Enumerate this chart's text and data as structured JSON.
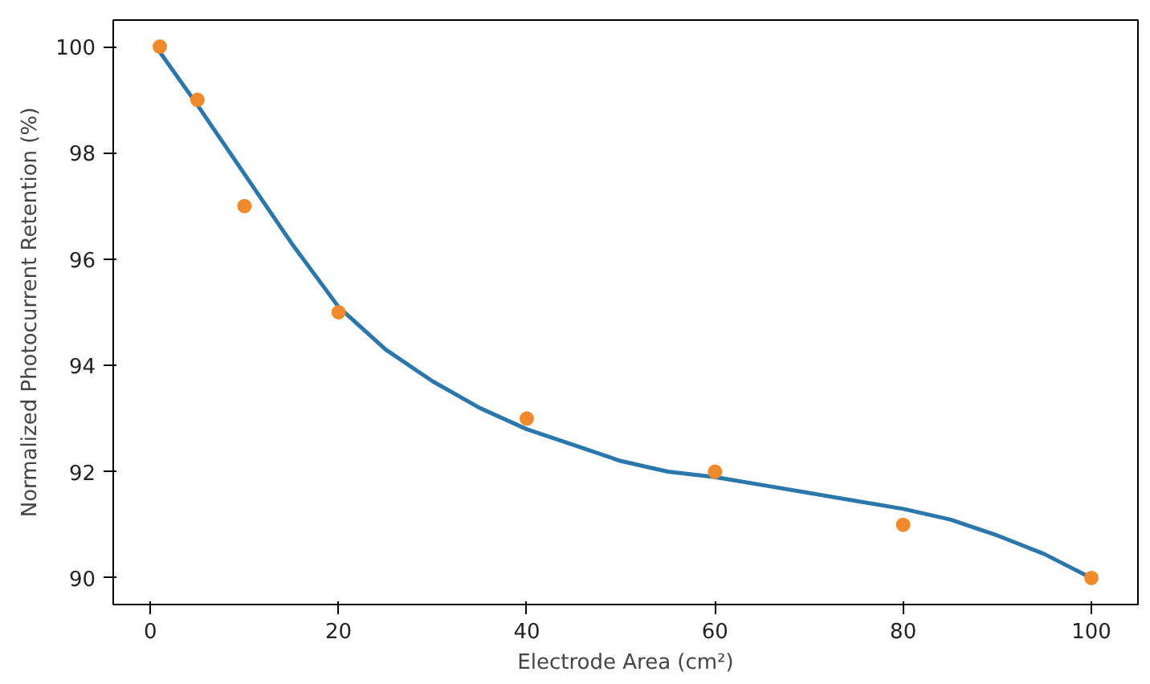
{
  "chart_data": {
    "type": "scatter",
    "xlabel": "Electrode Area (cm²)",
    "ylabel": "Normalized Photocurrent Retention (%)",
    "xlim": [
      -3.95,
      104.95
    ],
    "ylim": [
      89.5,
      100.5
    ],
    "xticks": [
      0,
      20,
      40,
      60,
      80,
      100
    ],
    "yticks": [
      90,
      92,
      94,
      96,
      98,
      100
    ],
    "grid": false,
    "series": [
      {
        "type": "line",
        "color": "#2a77ac",
        "x": [
          1,
          5,
          10,
          15,
          20,
          25,
          30,
          35,
          40,
          45,
          50,
          55,
          60,
          65,
          70,
          75,
          80,
          85,
          90,
          95,
          100
        ],
        "values": [
          99.9,
          98.9,
          97.6,
          96.3,
          95.1,
          94.3,
          93.7,
          93.2,
          92.8,
          92.5,
          92.2,
          92.0,
          91.9,
          91.75,
          91.6,
          91.45,
          91.3,
          91.1,
          90.8,
          90.45,
          90.0
        ]
      },
      {
        "marker": "circle",
        "color": "#f08a2a",
        "x": [
          1,
          5,
          10,
          20,
          40,
          60,
          80,
          100
        ],
        "values": [
          100,
          99,
          97,
          95,
          93,
          92,
          91,
          90
        ]
      }
    ]
  }
}
